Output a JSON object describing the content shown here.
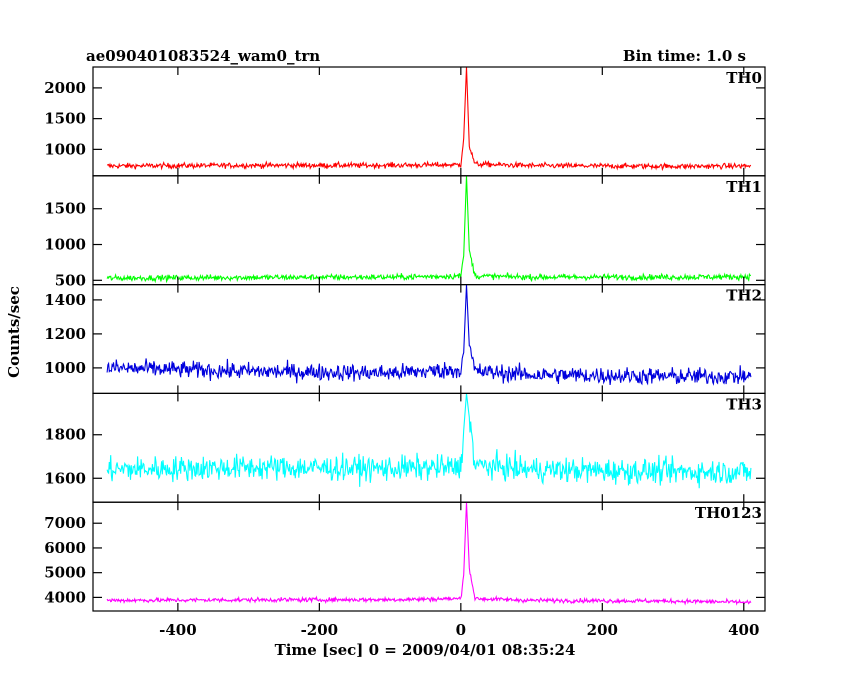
{
  "header": {
    "left_title": "ae090401083524_wam0_trn",
    "right_title": "Bin time: 1.0 s"
  },
  "axes": {
    "xlabel": "Time [sec] 0 = 2009/04/01 08:35:24",
    "ylabel": "Counts/sec"
  },
  "chart_data": {
    "type": "line",
    "title": "ae090401083524_wam0_trn",
    "subtitle": "Bin time: 1.0 s",
    "xlabel": "Time [sec] 0 = 2009/04/01 08:35:24",
    "ylabel": "Counts/sec",
    "xlim": [
      -520,
      430
    ],
    "x_ticks": [
      -400,
      -200,
      0,
      200,
      400
    ],
    "grid": false,
    "series": [
      {
        "name": "TH0",
        "color": "#ff0000",
        "ylim": [
          570,
          2340
        ],
        "y_ticks": [
          1000,
          1500,
          2000
        ],
        "baseline": 735,
        "noise": 30,
        "peak": 2340,
        "peak_x": 8,
        "points": [
          [
            -500,
            730
          ],
          [
            -300,
            740
          ],
          [
            -100,
            740
          ],
          [
            0,
            750
          ],
          [
            4,
            1180
          ],
          [
            8,
            2340
          ],
          [
            12,
            1050
          ],
          [
            20,
            760
          ],
          [
            100,
            735
          ],
          [
            300,
            725
          ],
          [
            410,
            730
          ]
        ]
      },
      {
        "name": "TH1",
        "color": "#00ff00",
        "ylim": [
          440,
          1960
        ],
        "y_ticks": [
          500,
          1000,
          1500
        ],
        "baseline": 540,
        "noise": 28,
        "peak": 1960,
        "peak_x": 8,
        "points": [
          [
            -500,
            530
          ],
          [
            -300,
            540
          ],
          [
            -100,
            545
          ],
          [
            0,
            560
          ],
          [
            4,
            840
          ],
          [
            8,
            1960
          ],
          [
            12,
            920
          ],
          [
            20,
            560
          ],
          [
            100,
            545
          ],
          [
            300,
            545
          ],
          [
            410,
            550
          ]
        ]
      },
      {
        "name": "TH2",
        "color": "#0000dd",
        "ylim": [
          850,
          1490
        ],
        "y_ticks": [
          1000,
          1200,
          1400
        ],
        "baseline": 975,
        "noise": 35,
        "peak": 1490,
        "peak_x": 8,
        "points": [
          [
            -500,
            1000
          ],
          [
            -300,
            980
          ],
          [
            -100,
            970
          ],
          [
            0,
            990
          ],
          [
            4,
            1090
          ],
          [
            8,
            1490
          ],
          [
            12,
            1130
          ],
          [
            20,
            980
          ],
          [
            100,
            960
          ],
          [
            300,
            950
          ],
          [
            410,
            950
          ]
        ]
      },
      {
        "name": "TH3",
        "color": "#00ffff",
        "ylim": [
          1490,
          1990
        ],
        "y_ticks": [
          1600,
          1800
        ],
        "baseline": 1640,
        "noise": 40,
        "peak": 1990,
        "peak_x": 8,
        "points": [
          [
            -500,
            1640
          ],
          [
            -300,
            1650
          ],
          [
            -100,
            1645
          ],
          [
            0,
            1650
          ],
          [
            8,
            1990
          ],
          [
            20,
            1660
          ],
          [
            100,
            1640
          ],
          [
            300,
            1630
          ],
          [
            410,
            1630
          ]
        ]
      },
      {
        "name": "TH0123",
        "color": "#ff00ff",
        "ylim": [
          3450,
          7850
        ],
        "y_ticks": [
          4000,
          5000,
          6000,
          7000
        ],
        "baseline": 3900,
        "noise": 60,
        "peak": 7850,
        "peak_x": 8,
        "points": [
          [
            -500,
            3880
          ],
          [
            -300,
            3900
          ],
          [
            -100,
            3910
          ],
          [
            0,
            3950
          ],
          [
            4,
            4900
          ],
          [
            8,
            7850
          ],
          [
            12,
            5200
          ],
          [
            20,
            3950
          ],
          [
            100,
            3880
          ],
          [
            300,
            3850
          ],
          [
            410,
            3800
          ]
        ]
      }
    ]
  }
}
